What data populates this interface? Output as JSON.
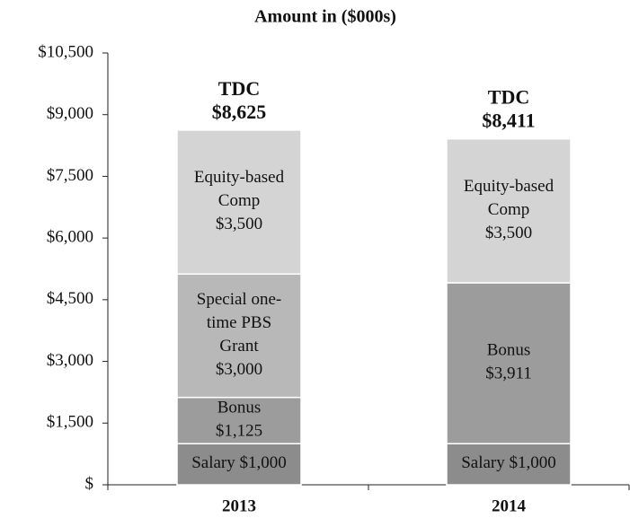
{
  "chart_data": {
    "type": "stacked_bar",
    "title": "Amount in ($000s)",
    "categories": [
      "2013",
      "2014"
    ],
    "series": [
      {
        "color": "#8c8c8c",
        "values": [
          1000,
          1000
        ],
        "value_labels": [
          "Salary $1,000",
          "Salary $1,000"
        ]
      },
      {
        "color": "#9c9c9c",
        "values": [
          1125,
          3911
        ],
        "value_labels": [
          "Bonus\n$1,125",
          "Bonus\n$3,911"
        ]
      },
      {
        "color": "#b8b8b8",
        "values": [
          3000,
          null
        ],
        "value_labels": [
          "Special one-\ntime PBS\nGrant\n$3,000",
          null
        ]
      },
      {
        "color": "#d4d4d4",
        "values": [
          3500,
          3500
        ],
        "value_labels": [
          "Equity-based\nComp\n$3,500",
          "Equity-based\nComp\n$3,500"
        ]
      }
    ],
    "totals": [
      8625,
      8411
    ],
    "total_labels": [
      "TDC\n$8,625",
      "TDC\n$8,411"
    ],
    "ylim": [
      0,
      10500
    ],
    "yticks": [
      {
        "value": 0,
        "label": "$"
      },
      {
        "value": 1500,
        "label": "$1,500"
      },
      {
        "value": 3000,
        "label": "$3,000"
      },
      {
        "value": 4500,
        "label": "$4,500"
      },
      {
        "value": 6000,
        "label": "$6,000"
      },
      {
        "value": 7500,
        "label": "$7,500"
      },
      {
        "value": 9000,
        "label": "$9,000"
      },
      {
        "value": 10500,
        "label": "$10,500"
      }
    ]
  }
}
